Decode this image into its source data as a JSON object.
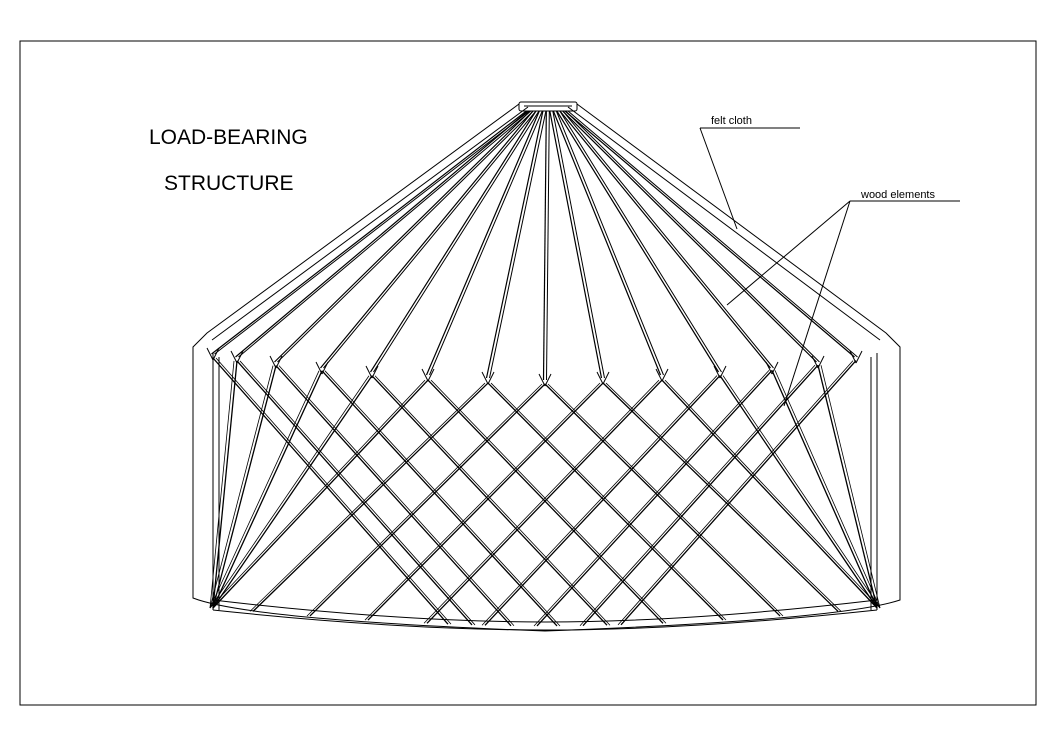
{
  "title": {
    "line1": "LOAD-BEARING",
    "line2": "STRUCTURE"
  },
  "labels": {
    "felt_cloth": "felt  cloth",
    "wood_elements": "wood  elements"
  },
  "colors": {
    "ink": "#000000",
    "paper": "#ffffff"
  }
}
